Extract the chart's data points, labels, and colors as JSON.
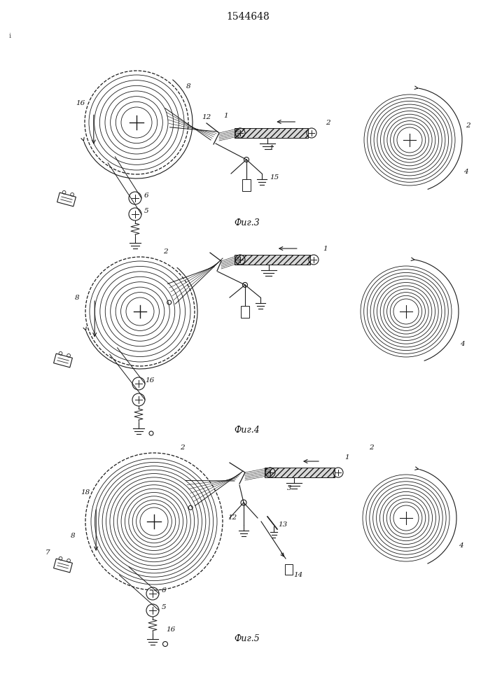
{
  "title": "1544648",
  "bg_color": "#ffffff",
  "line_color": "#000000",
  "fig_labels": [
    "Фиг.3",
    "Фиг.4",
    "Фиг.5"
  ],
  "fig_label_fontsize": 9
}
